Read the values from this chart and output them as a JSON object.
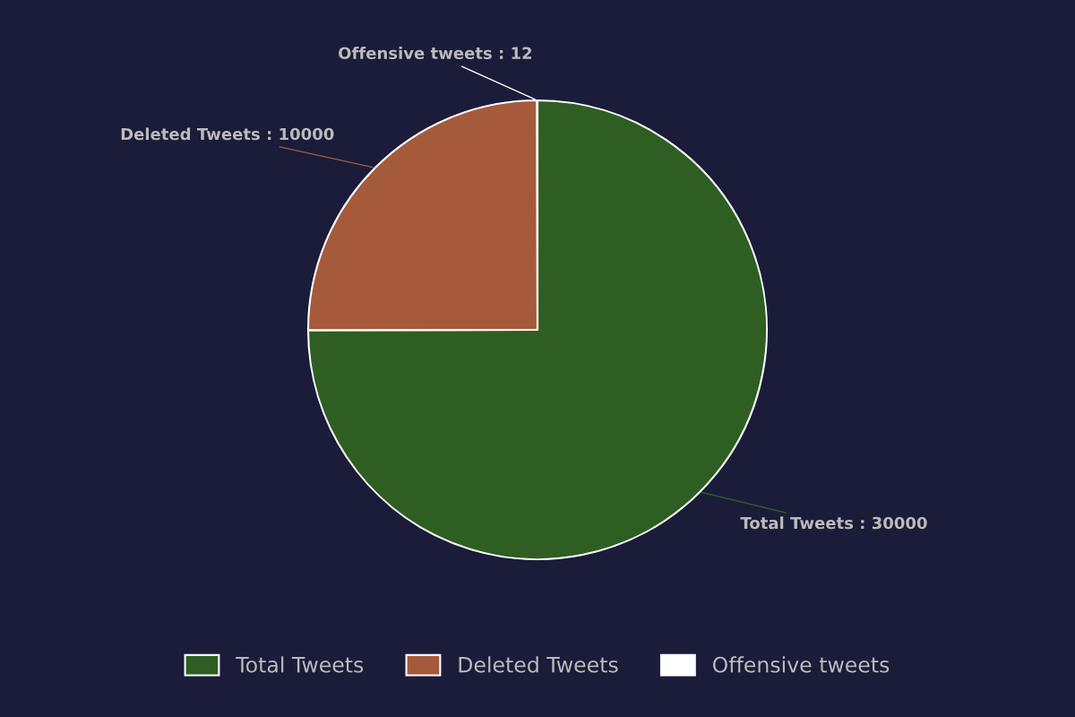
{
  "chart_data": {
    "type": "pie",
    "categories": [
      "Total Tweets",
      "Deleted Tweets",
      "Offensive tweets"
    ],
    "values": [
      30000,
      10000,
      12
    ],
    "colors": [
      "#2f5e22",
      "#a55a3b",
      "#ffffff"
    ],
    "value_labels": [
      "Total Tweets : 30000",
      "Deleted Tweets : 10000",
      "Offensive tweets : 12"
    ],
    "legend": "bottom"
  }
}
